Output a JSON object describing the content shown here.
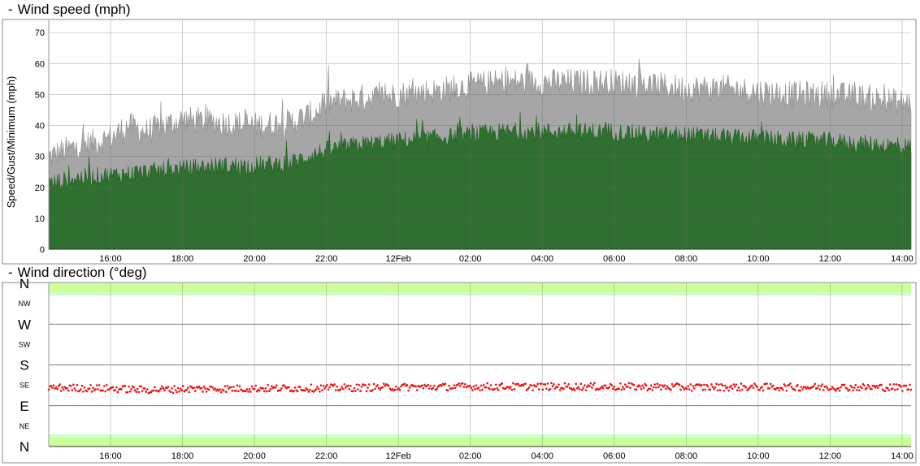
{
  "panels": {
    "speed": {
      "toggle": "-",
      "title": "Wind speed (mph)"
    },
    "direction": {
      "toggle": "-",
      "title": "Wind direction (°deg)"
    }
  },
  "chart_data": [
    {
      "type": "area",
      "title": "Wind speed (mph)",
      "ylabel": "Speed/Gust/Minimum (mph)",
      "xlabel": "",
      "x_ticks": [
        "16:00",
        "18:00",
        "20:00",
        "22:00",
        "12Feb",
        "02:00",
        "04:00",
        "06:00",
        "08:00",
        "10:00",
        "12:00",
        "14:00"
      ],
      "x_range": [
        "11 Feb 14:17",
        "12 Feb 14:15"
      ],
      "y_ticks": [
        0,
        10,
        20,
        30,
        40,
        50,
        60,
        70
      ],
      "ylim": [
        0,
        74
      ],
      "grid": true,
      "series": [
        {
          "color": "#a6a6a6",
          "points": [
            [
              "11 Feb 14:17",
              30
            ],
            [
              "11 Feb 15:00",
              33
            ],
            [
              "11 Feb 16:00",
              36
            ],
            [
              "11 Feb 16:30",
              40
            ],
            [
              "11 Feb 17:00",
              38
            ],
            [
              "11 Feb 18:00",
              42
            ],
            [
              "11 Feb 19:00",
              41
            ],
            [
              "11 Feb 20:00",
              40
            ],
            [
              "11 Feb 21:00",
              41
            ],
            [
              "11 Feb 21:40",
              44
            ],
            [
              "11 Feb 22:00",
              47
            ],
            [
              "11 Feb 23:00",
              49
            ],
            [
              "12 Feb 00:00",
              50
            ],
            [
              "12 Feb 01:00",
              51
            ],
            [
              "12 Feb 02:00",
              53
            ],
            [
              "12 Feb 03:00",
              54
            ],
            [
              "12 Feb 04:00",
              54
            ],
            [
              "12 Feb 05:00",
              54
            ],
            [
              "12 Feb 06:00",
              54
            ],
            [
              "12 Feb 07:00",
              53
            ],
            [
              "12 Feb 08:00",
              52
            ],
            [
              "12 Feb 09:00",
              52
            ],
            [
              "12 Feb 10:00",
              51
            ],
            [
              "12 Feb 11:00",
              50
            ],
            [
              "12 Feb 12:00",
              50
            ],
            [
              "12 Feb 13:00",
              49
            ],
            [
              "12 Feb 14:15",
              47
            ]
          ]
        },
        {
          "color": "#2f6f2f",
          "points": [
            [
              "11 Feb 14:17",
              21
            ],
            [
              "11 Feb 15:00",
              23
            ],
            [
              "11 Feb 16:00",
              24
            ],
            [
              "11 Feb 17:00",
              25
            ],
            [
              "11 Feb 18:00",
              26
            ],
            [
              "11 Feb 19:00",
              27
            ],
            [
              "11 Feb 20:00",
              27
            ],
            [
              "11 Feb 21:00",
              28
            ],
            [
              "11 Feb 22:00",
              32
            ],
            [
              "11 Feb 23:00",
              34
            ],
            [
              "12 Feb 00:00",
              35
            ],
            [
              "12 Feb 01:00",
              36
            ],
            [
              "12 Feb 02:00",
              37
            ],
            [
              "12 Feb 03:00",
              38
            ],
            [
              "12 Feb 04:00",
              38
            ],
            [
              "12 Feb 05:00",
              38
            ],
            [
              "12 Feb 06:00",
              38
            ],
            [
              "12 Feb 07:00",
              37
            ],
            [
              "12 Feb 08:00",
              37
            ],
            [
              "12 Feb 09:00",
              36
            ],
            [
              "12 Feb 10:00",
              36
            ],
            [
              "12 Feb 11:00",
              35
            ],
            [
              "12 Feb 12:00",
              35
            ],
            [
              "12 Feb 13:00",
              34
            ],
            [
              "12 Feb 14:15",
              33
            ]
          ]
        }
      ]
    },
    {
      "type": "scatter",
      "title": "Wind direction (°deg)",
      "xlabel": "",
      "ylabel": "",
      "x_ticks": [
        "16:00",
        "18:00",
        "20:00",
        "22:00",
        "12Feb",
        "02:00",
        "04:00",
        "06:00",
        "08:00",
        "10:00",
        "12:00",
        "14:00"
      ],
      "y_ticks": [
        {
          "label": "N",
          "value": 360,
          "major": true
        },
        {
          "label": "NW",
          "value": 315,
          "major": false
        },
        {
          "label": "W",
          "value": 270,
          "major": true
        },
        {
          "label": "SW",
          "value": 225,
          "major": false
        },
        {
          "label": "S",
          "value": 180,
          "major": true
        },
        {
          "label": "SE",
          "value": 135,
          "major": false
        },
        {
          "label": "E",
          "value": 90,
          "major": true
        },
        {
          "label": "NE",
          "value": 45,
          "major": false
        },
        {
          "label": "N",
          "value": 0,
          "major": true
        }
      ],
      "ylim": [
        0,
        360
      ],
      "bands": [
        {
          "from": 0,
          "to": 20,
          "color": "#ccff99"
        },
        {
          "from": 20,
          "to": 27,
          "color": "#ccffcc"
        },
        {
          "from": 333,
          "to": 340,
          "color": "#ccffcc"
        },
        {
          "from": 340,
          "to": 360,
          "color": "#ccff99"
        }
      ],
      "grid": true,
      "series": [
        {
          "color": "#ee1111",
          "points": [
            [
              "11 Feb 14:17",
              130
            ],
            [
              "11 Feb 16:00",
              128
            ],
            [
              "11 Feb 17:00",
              125
            ],
            [
              "11 Feb 18:00",
              127
            ],
            [
              "11 Feb 20:00",
              128
            ],
            [
              "11 Feb 22:00",
              129
            ],
            [
              "12 Feb 00:00",
              131
            ],
            [
              "12 Feb 02:00",
              132
            ],
            [
              "12 Feb 04:00",
              132
            ],
            [
              "12 Feb 06:00",
              132
            ],
            [
              "12 Feb 08:00",
              131
            ],
            [
              "12 Feb 10:00",
              131
            ],
            [
              "12 Feb 12:00",
              131
            ],
            [
              "12 Feb 14:15",
              130
            ]
          ]
        }
      ]
    }
  ]
}
